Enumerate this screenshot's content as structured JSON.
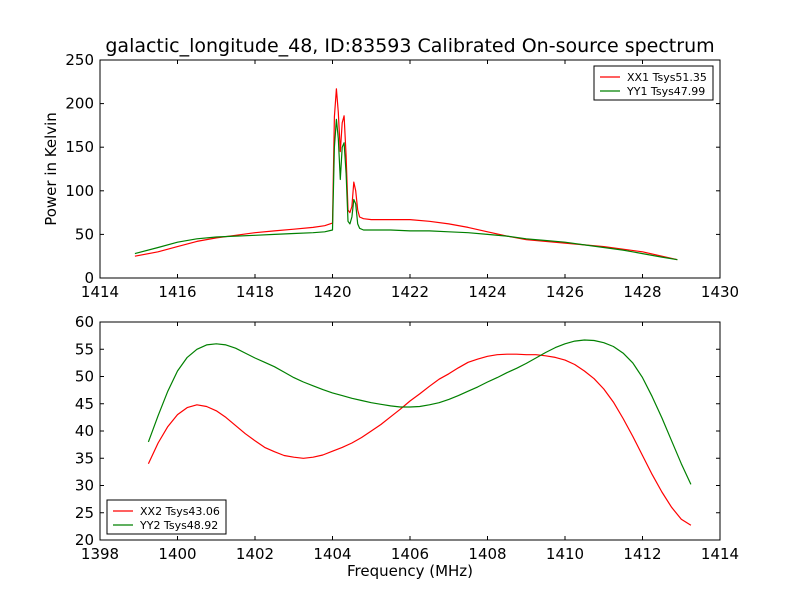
{
  "figure": {
    "title": "galactic_longitude_48, ID:83593 Calibrated On-source spectrum"
  },
  "chart_data": [
    {
      "type": "line",
      "title": "galactic_longitude_48, ID:83593 Calibrated On-source spectrum",
      "xlabel": "",
      "ylabel": "Power in Kelvin",
      "xlim": [
        1414,
        1430
      ],
      "ylim": [
        0,
        250
      ],
      "xticks": [
        "1414",
        "1416",
        "1418",
        "1420",
        "1422",
        "1424",
        "1426",
        "1428",
        "1430"
      ],
      "yticks": [
        "0",
        "50",
        "100",
        "150",
        "200",
        "250"
      ],
      "grid": false,
      "legend_position": "upper-right",
      "series": [
        {
          "name": "XX1 Tsys51.35",
          "color": "#ff0000",
          "x": [
            1414.9,
            1415.5,
            1416.0,
            1416.5,
            1417.0,
            1417.5,
            1418.0,
            1418.5,
            1419.0,
            1419.5,
            1419.8,
            1420.0,
            1420.05,
            1420.1,
            1420.15,
            1420.2,
            1420.25,
            1420.3,
            1420.35,
            1420.4,
            1420.45,
            1420.5,
            1420.55,
            1420.6,
            1420.65,
            1420.7,
            1420.8,
            1421.0,
            1421.5,
            1422.0,
            1422.5,
            1423.0,
            1423.5,
            1424.0,
            1424.5,
            1425.0,
            1425.5,
            1426.0,
            1426.5,
            1427.0,
            1427.5,
            1428.0,
            1428.5,
            1428.9
          ],
          "y": [
            25,
            30,
            36,
            42,
            46,
            49,
            52,
            54,
            56,
            58,
            60,
            63,
            185,
            217,
            190,
            145,
            178,
            186,
            140,
            78,
            75,
            82,
            110,
            100,
            78,
            70,
            68,
            67,
            67,
            67,
            65,
            62,
            58,
            53,
            48,
            44,
            42,
            40,
            38,
            36,
            33,
            30,
            25,
            21
          ]
        },
        {
          "name": "YY1 Tsys47.99",
          "color": "#008000",
          "x": [
            1414.9,
            1415.5,
            1416.0,
            1416.5,
            1417.0,
            1417.5,
            1418.0,
            1418.5,
            1419.0,
            1419.5,
            1419.8,
            1420.0,
            1420.05,
            1420.1,
            1420.15,
            1420.2,
            1420.25,
            1420.3,
            1420.35,
            1420.4,
            1420.45,
            1420.5,
            1420.55,
            1420.6,
            1420.65,
            1420.7,
            1420.8,
            1421.0,
            1421.5,
            1422.0,
            1422.5,
            1423.0,
            1423.5,
            1424.0,
            1424.5,
            1425.0,
            1425.5,
            1426.0,
            1426.5,
            1427.0,
            1427.5,
            1428.0,
            1428.5,
            1428.9
          ],
          "y": [
            28,
            35,
            41,
            45,
            47,
            48,
            49,
            50,
            51,
            52,
            53,
            55,
            150,
            182,
            160,
            113,
            150,
            155,
            120,
            65,
            62,
            70,
            90,
            85,
            62,
            57,
            55,
            55,
            55,
            54,
            54,
            53,
            52,
            50,
            48,
            45,
            43,
            41,
            38,
            35,
            32,
            28,
            24,
            21
          ]
        }
      ]
    },
    {
      "type": "line",
      "title": "",
      "xlabel": "Frequency (MHz)",
      "ylabel": "",
      "xlim": [
        1398,
        1414
      ],
      "ylim": [
        20,
        60
      ],
      "xticks": [
        "1398",
        "1400",
        "1402",
        "1404",
        "1406",
        "1408",
        "1410",
        "1412",
        "1414"
      ],
      "yticks": [
        "20",
        "25",
        "30",
        "35",
        "40",
        "45",
        "50",
        "55",
        "60"
      ],
      "grid": false,
      "legend_position": "lower-left",
      "series": [
        {
          "name": "XX2 Tsys43.06",
          "color": "#ff0000",
          "x": [
            1399.25,
            1399.5,
            1399.75,
            1400.0,
            1400.25,
            1400.5,
            1400.75,
            1401.0,
            1401.25,
            1401.5,
            1401.75,
            1402.0,
            1402.25,
            1402.5,
            1402.75,
            1403.0,
            1403.25,
            1403.5,
            1403.75,
            1404.0,
            1404.25,
            1404.5,
            1404.75,
            1405.0,
            1405.25,
            1405.5,
            1405.75,
            1406.0,
            1406.25,
            1406.5,
            1406.75,
            1407.0,
            1407.25,
            1407.5,
            1407.75,
            1408.0,
            1408.25,
            1408.5,
            1408.75,
            1409.0,
            1409.25,
            1409.5,
            1409.75,
            1410.0,
            1410.25,
            1410.5,
            1410.75,
            1411.0,
            1411.25,
            1411.5,
            1411.75,
            1412.0,
            1412.25,
            1412.5,
            1412.75,
            1413.0,
            1413.25
          ],
          "y": [
            34.0,
            37.8,
            40.8,
            43.0,
            44.3,
            44.8,
            44.5,
            43.7,
            42.5,
            41.0,
            39.5,
            38.2,
            37.0,
            36.2,
            35.5,
            35.2,
            35.0,
            35.2,
            35.6,
            36.3,
            37.0,
            37.8,
            38.8,
            40.0,
            41.2,
            42.6,
            44.0,
            45.5,
            46.8,
            48.2,
            49.5,
            50.5,
            51.6,
            52.6,
            53.2,
            53.7,
            54.0,
            54.1,
            54.1,
            54.0,
            54.0,
            53.8,
            53.5,
            53.0,
            52.2,
            51.0,
            49.6,
            47.7,
            45.3,
            42.3,
            39.0,
            35.5,
            32.0,
            28.8,
            26.0,
            23.8,
            22.7
          ]
        },
        {
          "name": "YY2 Tsys48.92",
          "color": "#008000",
          "x": [
            1399.25,
            1399.5,
            1399.75,
            1400.0,
            1400.25,
            1400.5,
            1400.75,
            1401.0,
            1401.25,
            1401.5,
            1401.75,
            1402.0,
            1402.25,
            1402.5,
            1402.75,
            1403.0,
            1403.25,
            1403.5,
            1403.75,
            1404.0,
            1404.25,
            1404.5,
            1404.75,
            1405.0,
            1405.25,
            1405.5,
            1405.75,
            1406.0,
            1406.25,
            1406.5,
            1406.75,
            1407.0,
            1407.25,
            1407.5,
            1407.75,
            1408.0,
            1408.25,
            1408.5,
            1408.75,
            1409.0,
            1409.25,
            1409.5,
            1409.75,
            1410.0,
            1410.25,
            1410.5,
            1410.75,
            1411.0,
            1411.25,
            1411.5,
            1411.75,
            1412.0,
            1412.25,
            1412.5,
            1412.75,
            1413.0,
            1413.25
          ],
          "y": [
            38.0,
            42.8,
            47.3,
            51.0,
            53.5,
            55.0,
            55.8,
            56.0,
            55.8,
            55.2,
            54.3,
            53.4,
            52.6,
            51.8,
            50.8,
            49.8,
            49.0,
            48.3,
            47.6,
            47.0,
            46.5,
            46.0,
            45.6,
            45.2,
            44.9,
            44.6,
            44.4,
            44.4,
            44.5,
            44.8,
            45.2,
            45.8,
            46.5,
            47.3,
            48.1,
            49.0,
            49.8,
            50.7,
            51.5,
            52.4,
            53.4,
            54.4,
            55.3,
            56.0,
            56.5,
            56.7,
            56.6,
            56.2,
            55.5,
            54.3,
            52.5,
            49.8,
            46.3,
            42.4,
            38.2,
            34.0,
            30.2
          ]
        }
      ]
    }
  ]
}
